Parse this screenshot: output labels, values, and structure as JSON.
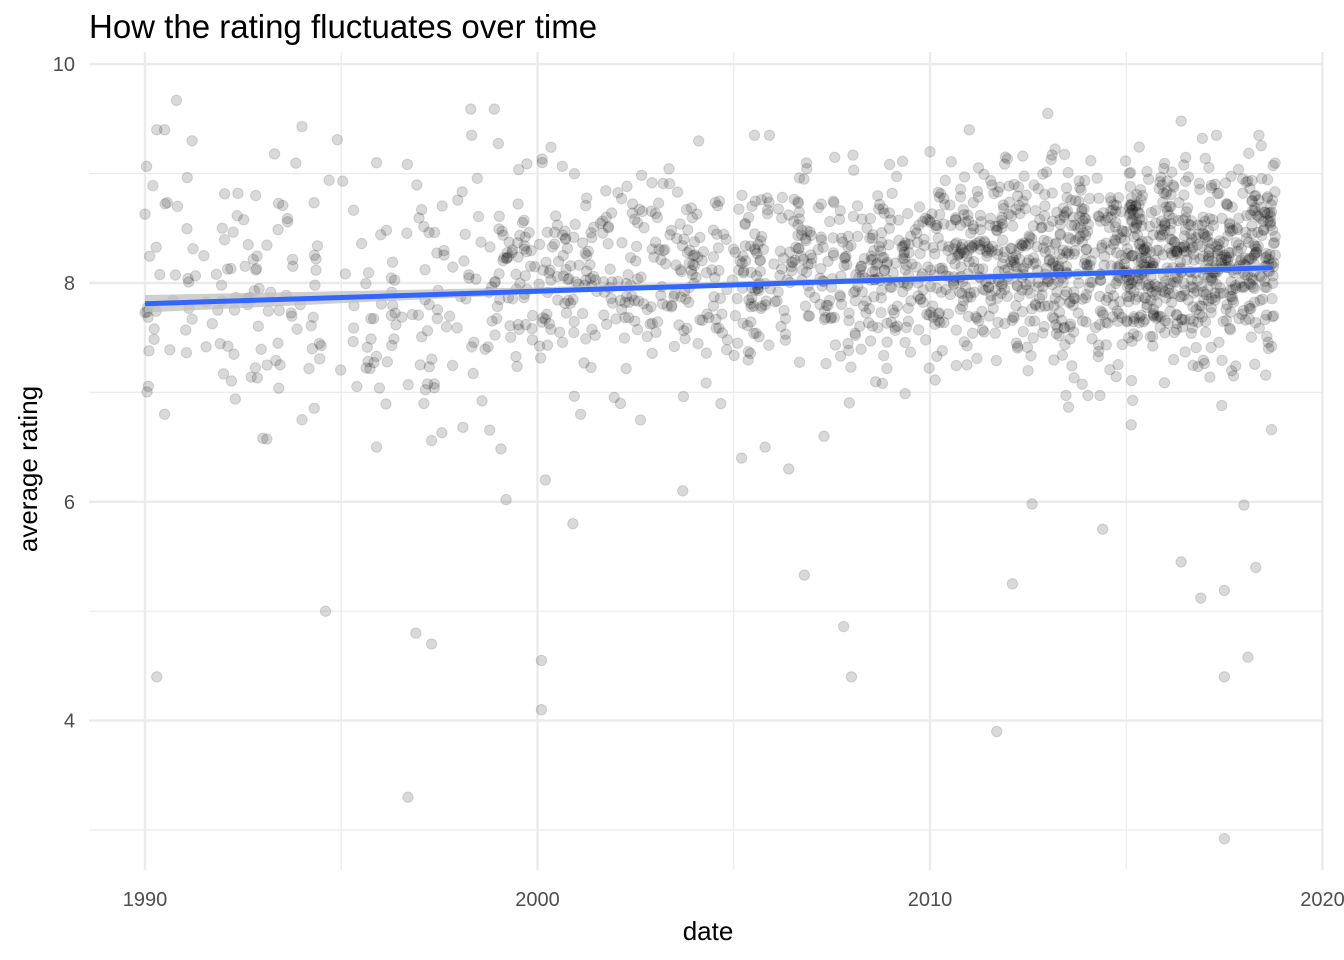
{
  "chart_data": {
    "type": "scatter",
    "title": "How the rating fluctuates over time",
    "xlabel": "date",
    "ylabel": "average rating",
    "xlim": [
      1988.85,
      2020.1
    ],
    "ylim": [
      2.78,
      10.0
    ],
    "x_ticks": [
      1990,
      2000,
      2010,
      2020
    ],
    "x_tick_labels": [
      "1990",
      "2000",
      "2010",
      "2020"
    ],
    "y_ticks": [
      4,
      6,
      8,
      10
    ],
    "y_tick_labels": [
      "4",
      "6",
      "8",
      "10"
    ],
    "x_minor_ticks": [
      1995,
      2005,
      2015
    ],
    "y_minor_ticks": [
      3,
      5,
      7,
      9
    ],
    "grid": true,
    "legend": "none",
    "colors": {
      "points": "#000000",
      "trend": "#3366ff",
      "band": "#bfbfbf",
      "grid": "#ebebeb"
    },
    "point_alpha": 0.15,
    "notable_points": [
      {
        "x": 1990.0,
        "y": 8.63
      },
      {
        "x": 1990.0,
        "y": 7.73
      },
      {
        "x": 1990.1,
        "y": 7.38
      },
      {
        "x": 1990.2,
        "y": 8.89
      },
      {
        "x": 1990.3,
        "y": 9.4
      },
      {
        "x": 1990.3,
        "y": 4.4
      },
      {
        "x": 1990.5,
        "y": 9.4
      },
      {
        "x": 1990.5,
        "y": 6.8
      },
      {
        "x": 1990.8,
        "y": 9.67
      },
      {
        "x": 1991.2,
        "y": 9.3
      },
      {
        "x": 1992.0,
        "y": 7.17
      },
      {
        "x": 1992.3,
        "y": 6.94
      },
      {
        "x": 1993.0,
        "y": 6.58
      },
      {
        "x": 1993.3,
        "y": 9.18
      },
      {
        "x": 1994.0,
        "y": 9.43
      },
      {
        "x": 1994.0,
        "y": 6.75
      },
      {
        "x": 1994.6,
        "y": 5.0
      },
      {
        "x": 1994.9,
        "y": 9.31
      },
      {
        "x": 1995.9,
        "y": 9.1
      },
      {
        "x": 1995.9,
        "y": 6.5
      },
      {
        "x": 1996.7,
        "y": 3.3
      },
      {
        "x": 1996.9,
        "y": 4.8
      },
      {
        "x": 1997.3,
        "y": 4.7
      },
      {
        "x": 1997.3,
        "y": 6.56
      },
      {
        "x": 1998.3,
        "y": 9.59
      },
      {
        "x": 1998.9,
        "y": 9.59
      },
      {
        "x": 1999.2,
        "y": 6.02
      },
      {
        "x": 2000.1,
        "y": 4.55
      },
      {
        "x": 2000.1,
        "y": 4.1
      },
      {
        "x": 2000.2,
        "y": 6.2
      },
      {
        "x": 2000.9,
        "y": 5.8
      },
      {
        "x": 2001.1,
        "y": 6.8
      },
      {
        "x": 2003.7,
        "y": 6.1
      },
      {
        "x": 2005.2,
        "y": 6.4
      },
      {
        "x": 2005.8,
        "y": 6.5
      },
      {
        "x": 2006.4,
        "y": 6.3
      },
      {
        "x": 2006.8,
        "y": 5.33
      },
      {
        "x": 2007.3,
        "y": 6.6
      },
      {
        "x": 2007.8,
        "y": 4.86
      },
      {
        "x": 2008.0,
        "y": 4.4
      },
      {
        "x": 2010.0,
        "y": 9.2
      },
      {
        "x": 2011.0,
        "y": 9.4
      },
      {
        "x": 2011.7,
        "y": 3.9
      },
      {
        "x": 2012.1,
        "y": 5.25
      },
      {
        "x": 2012.6,
        "y": 5.98
      },
      {
        "x": 2013.0,
        "y": 9.55
      },
      {
        "x": 2014.4,
        "y": 5.75
      },
      {
        "x": 2016.4,
        "y": 9.48
      },
      {
        "x": 2016.4,
        "y": 5.45
      },
      {
        "x": 2016.9,
        "y": 5.12
      },
      {
        "x": 2017.5,
        "y": 5.19
      },
      {
        "x": 2017.5,
        "y": 4.4
      },
      {
        "x": 2017.5,
        "y": 2.92
      },
      {
        "x": 2018.0,
        "y": 5.97
      },
      {
        "x": 2018.1,
        "y": 4.58
      },
      {
        "x": 2018.3,
        "y": 5.4
      },
      {
        "x": 2018.7,
        "y": 6.66
      },
      {
        "x": 2018.7,
        "y": 8.65
      },
      {
        "x": 2018.7,
        "y": 7.42
      }
    ],
    "dense_clusters": [
      {
        "x_range": [
          1990.0,
          1999.0
        ],
        "y_mean": 7.9,
        "y_sd": 0.55,
        "count": 210
      },
      {
        "x_range": [
          1999.0,
          2005.0
        ],
        "y_mean": 8.05,
        "y_sd": 0.45,
        "count": 300
      },
      {
        "x_range": [
          2005.0,
          2010.0
        ],
        "y_mean": 8.1,
        "y_sd": 0.42,
        "count": 340
      },
      {
        "x_range": [
          2010.0,
          2015.0
        ],
        "y_mean": 8.15,
        "y_sd": 0.45,
        "count": 520
      },
      {
        "x_range": [
          2015.0,
          2018.8
        ],
        "y_mean": 8.2,
        "y_sd": 0.45,
        "count": 560
      }
    ],
    "trend_line": {
      "x": [
        1990.0,
        2018.7
      ],
      "y": [
        7.81,
        8.14
      ],
      "se_band": [
        [
          1990.0,
          7.73,
          7.89
        ],
        [
          2000.0,
          7.9,
          7.96
        ],
        [
          2010.0,
          8.03,
          8.07
        ],
        [
          2018.7,
          8.11,
          8.17
        ]
      ]
    }
  }
}
